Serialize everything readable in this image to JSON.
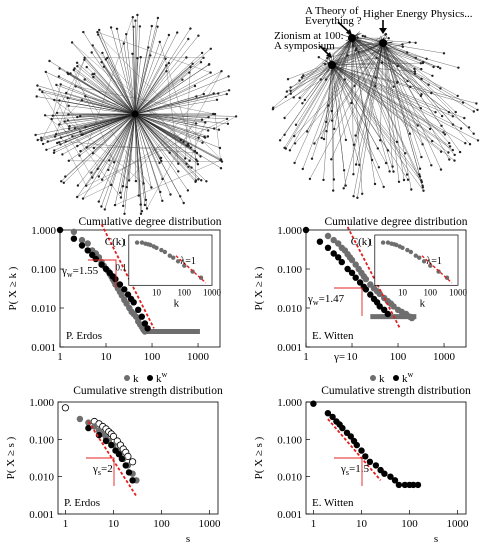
{
  "networks": {
    "left": {},
    "right": {
      "labels": [
        "A Theory of",
        "Everything ?",
        "Higher Energy Physics...",
        "Zionism at 100:",
        "A symposium"
      ]
    }
  },
  "chart_data": [
    {
      "type": "scatter",
      "panel": "degree-erdos",
      "title": "Cumulative degree distribution",
      "xlabel": "",
      "ylabel": "P( X ≥ k )",
      "scale": "log-log",
      "xlim": [
        1,
        3000
      ],
      "ylim": [
        0.001,
        1.0
      ],
      "xticks": [
        "1",
        "10",
        "100",
        "1000"
      ],
      "yticks": [
        "0.001",
        "0.010",
        "0.100",
        "1.000"
      ],
      "annotation": "γw=1.55",
      "gamma_sub": "w",
      "gamma_value": "=1.55",
      "corner_label": "P. Erdos",
      "legend": [
        "k",
        "kw"
      ],
      "series": [
        {
          "name": "k",
          "color": "#6e6e6e",
          "x": [
            2,
            3,
            4,
            5,
            6,
            7,
            8,
            9,
            10,
            11,
            12,
            13,
            14,
            15,
            16,
            18,
            20,
            22,
            25,
            28,
            32,
            36,
            40,
            45,
            50,
            55,
            60,
            65,
            70
          ],
          "y": [
            0.9,
            0.55,
            0.45,
            0.3,
            0.25,
            0.2,
            0.15,
            0.12,
            0.1,
            0.09,
            0.075,
            0.065,
            0.055,
            0.048,
            0.04,
            0.032,
            0.026,
            0.021,
            0.016,
            0.013,
            0.01,
            0.008,
            0.007,
            0.006,
            0.0045,
            0.0038,
            0.0033,
            0.0028,
            0.0025
          ]
        },
        {
          "name": "kw",
          "color": "#000000",
          "x": [
            1,
            2,
            3,
            4,
            5,
            6,
            8,
            10,
            12,
            14,
            16,
            20,
            25,
            30,
            35,
            40,
            50,
            60,
            70,
            80
          ],
          "y": [
            1,
            0.6,
            0.4,
            0.3,
            0.23,
            0.18,
            0.13,
            0.1,
            0.08,
            0.065,
            0.055,
            0.04,
            0.03,
            0.022,
            0.017,
            0.014,
            0.009,
            0.006,
            0.004,
            0.003
          ]
        }
      ],
      "tail": {
        "color": "#6e6e6e",
        "x_from": 70,
        "x_to": 1100,
        "y": 0.0025
      },
      "fit": {
        "x": [
          8,
          110
        ],
        "y": [
          1.4,
          0.003
        ]
      },
      "inset": {
        "label": "C(k)",
        "xlabel": "k",
        "xticks": [
          "10",
          "100",
          "1000"
        ],
        "yticks": [
          "1",
          "0.1"
        ],
        "xlim": [
          1,
          1000
        ],
        "ylim": [
          0.02,
          2
        ],
        "annotation": "λ=1",
        "points": {
          "x": [
            2,
            3,
            4,
            5,
            6,
            8,
            10,
            15,
            20,
            30,
            40,
            60,
            100,
            200,
            400
          ],
          "y": [
            1,
            1,
            0.9,
            0.85,
            0.8,
            0.7,
            0.62,
            0.5,
            0.42,
            0.3,
            0.25,
            0.18,
            0.12,
            0.07,
            0.04
          ]
        },
        "fit": {
          "x": [
            50,
            600
          ],
          "y": [
            0.3,
            0.025
          ]
        }
      }
    },
    {
      "type": "scatter",
      "panel": "degree-witten",
      "title": "Cumulative degree distribution",
      "xlabel": "",
      "ylabel": "P( X ≥ k )",
      "scale": "log-log",
      "xlim": [
        1,
        3000
      ],
      "ylim": [
        0.001,
        1.0
      ],
      "xticks": [
        "1",
        "10",
        "100",
        "1000"
      ],
      "yticks": [
        "0.001",
        "0.010",
        "0.100",
        "1.000"
      ],
      "annotation": "γw=1.47",
      "gamma_sub": "w",
      "gamma_value": "=1.47",
      "corner_label": "E. Witten",
      "legend": [
        "k",
        "kw"
      ],
      "bottom_gamma": "γ=",
      "series": [
        {
          "name": "k",
          "color": "#6e6e6e",
          "x": [
            3,
            4,
            5,
            6,
            7,
            8,
            9,
            10,
            12,
            14,
            16,
            18,
            20,
            25,
            30,
            35,
            40,
            50,
            60,
            70,
            80,
            100,
            120,
            150,
            180,
            200
          ],
          "y": [
            0.7,
            0.55,
            0.45,
            0.35,
            0.3,
            0.24,
            0.2,
            0.17,
            0.13,
            0.1,
            0.08,
            0.065,
            0.055,
            0.04,
            0.032,
            0.027,
            0.023,
            0.018,
            0.015,
            0.013,
            0.011,
            0.009,
            0.008,
            0.007,
            0.006,
            0.0055
          ]
        },
        {
          "name": "kw",
          "color": "#000000",
          "x": [
            1,
            2,
            3,
            4,
            5,
            6,
            8,
            10,
            12,
            15,
            18,
            20,
            25,
            30,
            35,
            40,
            50,
            60
          ],
          "y": [
            1,
            0.5,
            0.35,
            0.25,
            0.2,
            0.15,
            0.1,
            0.08,
            0.06,
            0.045,
            0.035,
            0.03,
            0.022,
            0.017,
            0.014,
            0.011,
            0.009,
            0.007
          ]
        }
      ],
      "tail": {
        "color": "#6e6e6e",
        "x_from": 25,
        "x_to": 250,
        "y": 0.006
      },
      "fit": {
        "x": [
          8,
          110
        ],
        "y": [
          1.2,
          0.003
        ]
      },
      "inset": {
        "label": "C(k)",
        "xlabel": "k",
        "xticks": [
          "10",
          "100",
          "1000"
        ],
        "yticks": [
          "1"
        ],
        "xlim": [
          1,
          1000
        ],
        "ylim": [
          0.02,
          2
        ],
        "annotation": "λ=1",
        "points": {
          "x": [
            2,
            3,
            4,
            5,
            6,
            8,
            10,
            15,
            20,
            30,
            40,
            60,
            100,
            200,
            400
          ],
          "y": [
            1,
            1,
            0.9,
            0.85,
            0.8,
            0.7,
            0.62,
            0.5,
            0.42,
            0.3,
            0.25,
            0.18,
            0.12,
            0.07,
            0.04
          ]
        },
        "fit": {
          "x": [
            50,
            600
          ],
          "y": [
            0.3,
            0.025
          ]
        }
      }
    },
    {
      "type": "scatter",
      "panel": "strength-erdos",
      "title": "Cumulative strength distribution",
      "xlabel": "s",
      "ylabel": "P( X ≥ s )",
      "scale": "log-log",
      "xlim": [
        0.7,
        1500
      ],
      "ylim": [
        0.001,
        1.0
      ],
      "xticks": [
        "1",
        "10",
        "100",
        "1000"
      ],
      "yticks": [
        "0.001",
        "0.010",
        "0.100",
        "1.000"
      ],
      "annotation": "γs=2",
      "gamma_sub": "s",
      "gamma_value": "=2",
      "corner_label": "P. Erdos",
      "series": [
        {
          "name": "open",
          "color": "#000000",
          "open": true,
          "x": [
            1,
            4,
            5,
            6,
            7,
            8,
            9,
            10,
            12,
            14,
            16,
            18,
            20,
            25
          ],
          "y": [
            0.7,
            0.3,
            0.26,
            0.22,
            0.19,
            0.16,
            0.14,
            0.12,
            0.09,
            0.07,
            0.055,
            0.045,
            0.035,
            0.025
          ]
        },
        {
          "name": "gray",
          "color": "#6e6e6e",
          "x": [
            2,
            3,
            4,
            5,
            6,
            7,
            8,
            10,
            12,
            14,
            16,
            20,
            25,
            30
          ],
          "y": [
            0.35,
            0.28,
            0.22,
            0.17,
            0.14,
            0.11,
            0.09,
            0.07,
            0.05,
            0.04,
            0.03,
            0.02,
            0.012,
            0.008
          ]
        },
        {
          "name": "black",
          "color": "#000000",
          "x": [
            3,
            5,
            7,
            9,
            11,
            13,
            15,
            18,
            21,
            25
          ],
          "y": [
            0.2,
            0.13,
            0.09,
            0.07,
            0.05,
            0.04,
            0.03,
            0.02,
            0.013,
            0.008
          ]
        }
      ],
      "fit": {
        "x": [
          3,
          30
        ],
        "y": [
          0.3,
          0.003
        ]
      }
    },
    {
      "type": "scatter",
      "panel": "strength-witten",
      "title": "Cumulative strength distribution",
      "xlabel": "s",
      "ylabel": "P( X ≥ s )",
      "scale": "log-log",
      "xlim": [
        0.7,
        1500
      ],
      "ylim": [
        0.001,
        1.0
      ],
      "xticks": [
        "1",
        "10",
        "100",
        "1000"
      ],
      "yticks": [
        "0.001",
        "0.010",
        "0.100",
        "1.000"
      ],
      "annotation": "γs=1.5",
      "gamma_sub": "s",
      "gamma_value": "=1.5",
      "corner_label": "E. Witten",
      "series": [
        {
          "name": "black",
          "color": "#000000",
          "x": [
            1,
            2,
            2.5,
            3,
            3.5,
            4,
            5,
            6,
            7,
            8,
            10,
            12,
            15,
            20,
            25,
            30,
            40,
            50,
            60,
            80,
            100,
            120,
            150
          ],
          "y": [
            0.9,
            0.5,
            0.4,
            0.3,
            0.25,
            0.2,
            0.15,
            0.12,
            0.09,
            0.07,
            0.05,
            0.035,
            0.025,
            0.02,
            0.015,
            0.012,
            0.01,
            0.008,
            0.006,
            0.006,
            0.006,
            0.006,
            0.006
          ]
        }
      ],
      "fit": {
        "x": [
          2,
          25
        ],
        "y": [
          0.35,
          0.008
        ]
      }
    }
  ]
}
